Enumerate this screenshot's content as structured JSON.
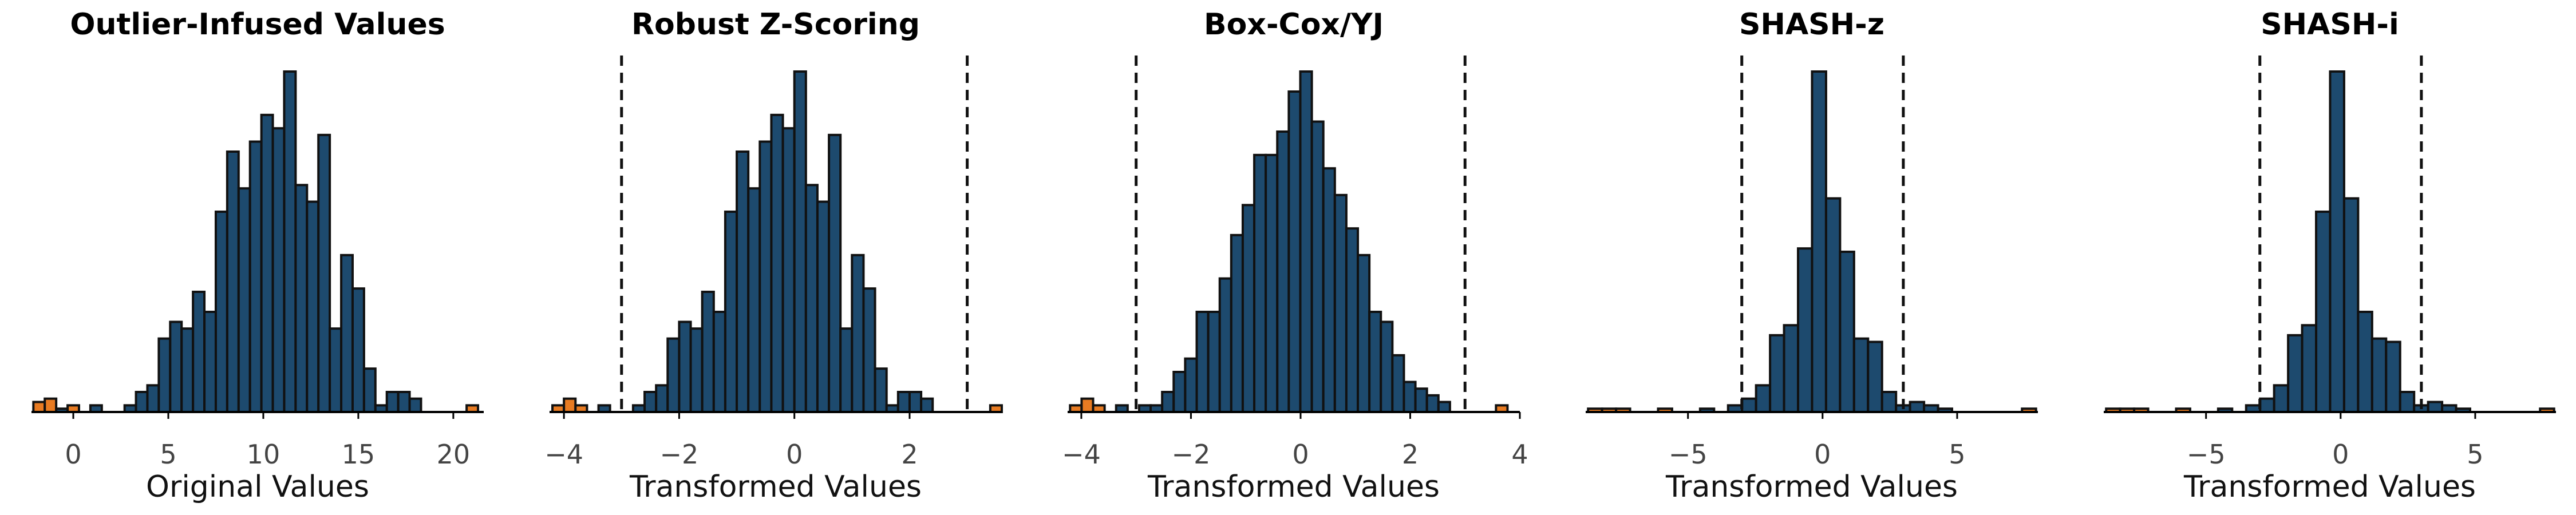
{
  "colors": {
    "inlier": "#1d4a6e",
    "outlier": "#e87b22",
    "edge": "#111111",
    "threshold": "#111111"
  },
  "chart_data": [
    {
      "type": "bar",
      "title": "Outlier-Infused Values",
      "xlabel": "Original Values",
      "xlim": [
        -2.2,
        21.6
      ],
      "xticks": [
        0,
        5,
        10,
        15,
        20
      ],
      "thresholds": [],
      "bin_width": 0.6,
      "bins": [
        {
          "x": -1.8,
          "count": 3,
          "outlier": true
        },
        {
          "x": -1.2,
          "count": 4,
          "outlier": true
        },
        {
          "x": -0.6,
          "count": 1,
          "outlier": false
        },
        {
          "x": -0.0,
          "count": 2,
          "outlier": true
        },
        {
          "x": 0.6,
          "count": 0,
          "outlier": false
        },
        {
          "x": 1.2,
          "count": 2,
          "outlier": false
        },
        {
          "x": 1.8,
          "count": 0,
          "outlier": false
        },
        {
          "x": 2.4,
          "count": 0,
          "outlier": false
        },
        {
          "x": 3.0,
          "count": 2,
          "outlier": false
        },
        {
          "x": 3.6,
          "count": 6,
          "outlier": false
        },
        {
          "x": 4.2,
          "count": 8,
          "outlier": false
        },
        {
          "x": 4.8,
          "count": 22,
          "outlier": false
        },
        {
          "x": 5.4,
          "count": 27,
          "outlier": false
        },
        {
          "x": 6.0,
          "count": 25,
          "outlier": false
        },
        {
          "x": 6.6,
          "count": 36,
          "outlier": false
        },
        {
          "x": 7.2,
          "count": 30,
          "outlier": false
        },
        {
          "x": 7.8,
          "count": 60,
          "outlier": false
        },
        {
          "x": 8.4,
          "count": 78,
          "outlier": false
        },
        {
          "x": 9.0,
          "count": 67,
          "outlier": false
        },
        {
          "x": 9.6,
          "count": 81,
          "outlier": false
        },
        {
          "x": 10.2,
          "count": 89,
          "outlier": false
        },
        {
          "x": 10.8,
          "count": 85,
          "outlier": false
        },
        {
          "x": 11.4,
          "count": 102,
          "outlier": false
        },
        {
          "x": 12.0,
          "count": 68,
          "outlier": false
        },
        {
          "x": 12.6,
          "count": 63,
          "outlier": false
        },
        {
          "x": 13.2,
          "count": 83,
          "outlier": false
        },
        {
          "x": 13.8,
          "count": 25,
          "outlier": false
        },
        {
          "x": 14.4,
          "count": 47,
          "outlier": false
        },
        {
          "x": 15.0,
          "count": 37,
          "outlier": false
        },
        {
          "x": 15.6,
          "count": 13,
          "outlier": false
        },
        {
          "x": 16.2,
          "count": 2,
          "outlier": false
        },
        {
          "x": 16.8,
          "count": 6,
          "outlier": false
        },
        {
          "x": 17.4,
          "count": 6,
          "outlier": false
        },
        {
          "x": 18.0,
          "count": 4,
          "outlier": false
        },
        {
          "x": 18.6,
          "count": 0,
          "outlier": false
        },
        {
          "x": 19.2,
          "count": 0,
          "outlier": false
        },
        {
          "x": 19.8,
          "count": 0,
          "outlier": false
        },
        {
          "x": 20.4,
          "count": 0,
          "outlier": false
        },
        {
          "x": 21.0,
          "count": 2,
          "outlier": true
        }
      ]
    },
    {
      "type": "bar",
      "title": "Robust Z-Scoring",
      "xlabel": "Transformed Values",
      "xlim": [
        -4.25,
        3.6
      ],
      "xticks": [
        -4,
        -2,
        0,
        2
      ],
      "thresholds": [
        -3,
        3
      ],
      "bin_width": 0.2,
      "bins": [
        {
          "x": -4.1,
          "count": 2,
          "outlier": true
        },
        {
          "x": -3.9,
          "count": 4,
          "outlier": true
        },
        {
          "x": -3.7,
          "count": 2,
          "outlier": true
        },
        {
          "x": -3.5,
          "count": 0,
          "outlier": false
        },
        {
          "x": -3.3,
          "count": 2,
          "outlier": false
        },
        {
          "x": -3.1,
          "count": 0,
          "outlier": false
        },
        {
          "x": -2.9,
          "count": 0,
          "outlier": false
        },
        {
          "x": -2.7,
          "count": 2,
          "outlier": false
        },
        {
          "x": -2.5,
          "count": 6,
          "outlier": false
        },
        {
          "x": -2.3,
          "count": 8,
          "outlier": false
        },
        {
          "x": -2.1,
          "count": 22,
          "outlier": false
        },
        {
          "x": -1.9,
          "count": 27,
          "outlier": false
        },
        {
          "x": -1.7,
          "count": 25,
          "outlier": false
        },
        {
          "x": -1.5,
          "count": 36,
          "outlier": false
        },
        {
          "x": -1.3,
          "count": 30,
          "outlier": false
        },
        {
          "x": -1.1,
          "count": 60,
          "outlier": false
        },
        {
          "x": -0.9,
          "count": 78,
          "outlier": false
        },
        {
          "x": -0.7,
          "count": 67,
          "outlier": false
        },
        {
          "x": -0.5,
          "count": 81,
          "outlier": false
        },
        {
          "x": -0.3,
          "count": 89,
          "outlier": false
        },
        {
          "x": -0.1,
          "count": 85,
          "outlier": false
        },
        {
          "x": 0.1,
          "count": 102,
          "outlier": false
        },
        {
          "x": 0.3,
          "count": 68,
          "outlier": false
        },
        {
          "x": 0.5,
          "count": 63,
          "outlier": false
        },
        {
          "x": 0.7,
          "count": 83,
          "outlier": false
        },
        {
          "x": 0.9,
          "count": 25,
          "outlier": false
        },
        {
          "x": 1.1,
          "count": 47,
          "outlier": false
        },
        {
          "x": 1.3,
          "count": 37,
          "outlier": false
        },
        {
          "x": 1.5,
          "count": 13,
          "outlier": false
        },
        {
          "x": 1.7,
          "count": 2,
          "outlier": false
        },
        {
          "x": 1.9,
          "count": 6,
          "outlier": false
        },
        {
          "x": 2.1,
          "count": 6,
          "outlier": false
        },
        {
          "x": 2.3,
          "count": 4,
          "outlier": false
        },
        {
          "x": 2.5,
          "count": 0,
          "outlier": false
        },
        {
          "x": 2.7,
          "count": 0,
          "outlier": false
        },
        {
          "x": 2.9,
          "count": 0,
          "outlier": false
        },
        {
          "x": 3.1,
          "count": 0,
          "outlier": false
        },
        {
          "x": 3.3,
          "count": 0,
          "outlier": false
        },
        {
          "x": 3.5,
          "count": 2,
          "outlier": true
        }
      ]
    },
    {
      "type": "bar",
      "title": "Box-Cox/YJ",
      "xlabel": "Transformed Values",
      "xlim": [
        -4.25,
        4.0
      ],
      "xticks": [
        -4,
        -2,
        0,
        2,
        4
      ],
      "thresholds": [
        -3,
        3
      ],
      "bin_width": 0.21,
      "bins": [
        {
          "x": -4.1,
          "count": 2,
          "outlier": true
        },
        {
          "x": -3.89,
          "count": 4,
          "outlier": true
        },
        {
          "x": -3.68,
          "count": 2,
          "outlier": true
        },
        {
          "x": -3.47,
          "count": 0,
          "outlier": false
        },
        {
          "x": -3.26,
          "count": 2,
          "outlier": false
        },
        {
          "x": -3.05,
          "count": 0,
          "outlier": false
        },
        {
          "x": -2.84,
          "count": 2,
          "outlier": false
        },
        {
          "x": -2.63,
          "count": 2,
          "outlier": false
        },
        {
          "x": -2.42,
          "count": 6,
          "outlier": false
        },
        {
          "x": -2.21,
          "count": 12,
          "outlier": false
        },
        {
          "x": -2.0,
          "count": 16,
          "outlier": false
        },
        {
          "x": -1.79,
          "count": 30,
          "outlier": false
        },
        {
          "x": -1.58,
          "count": 30,
          "outlier": false
        },
        {
          "x": -1.37,
          "count": 40,
          "outlier": false
        },
        {
          "x": -1.16,
          "count": 53,
          "outlier": false
        },
        {
          "x": -0.95,
          "count": 62,
          "outlier": false
        },
        {
          "x": -0.74,
          "count": 77,
          "outlier": false
        },
        {
          "x": -0.53,
          "count": 77,
          "outlier": false
        },
        {
          "x": -0.32,
          "count": 84,
          "outlier": false
        },
        {
          "x": -0.11,
          "count": 96,
          "outlier": false
        },
        {
          "x": 0.1,
          "count": 102,
          "outlier": false
        },
        {
          "x": 0.31,
          "count": 87,
          "outlier": false
        },
        {
          "x": 0.52,
          "count": 73,
          "outlier": false
        },
        {
          "x": 0.73,
          "count": 65,
          "outlier": false
        },
        {
          "x": 0.94,
          "count": 55,
          "outlier": false
        },
        {
          "x": 1.15,
          "count": 47,
          "outlier": false
        },
        {
          "x": 1.36,
          "count": 30,
          "outlier": false
        },
        {
          "x": 1.57,
          "count": 27,
          "outlier": false
        },
        {
          "x": 1.78,
          "count": 17,
          "outlier": false
        },
        {
          "x": 1.99,
          "count": 9,
          "outlier": false
        },
        {
          "x": 2.2,
          "count": 7,
          "outlier": false
        },
        {
          "x": 2.41,
          "count": 5,
          "outlier": false
        },
        {
          "x": 2.62,
          "count": 3,
          "outlier": false
        },
        {
          "x": 2.83,
          "count": 0,
          "outlier": false
        },
        {
          "x": 3.04,
          "count": 0,
          "outlier": false
        },
        {
          "x": 3.25,
          "count": 0,
          "outlier": false
        },
        {
          "x": 3.46,
          "count": 0,
          "outlier": false
        },
        {
          "x": 3.67,
          "count": 2,
          "outlier": true
        }
      ]
    },
    {
      "type": "bar",
      "title": "SHASH-z",
      "xlabel": "Transformed Values",
      "xlim": [
        -8.8,
        8.0
      ],
      "xticks": [
        -5,
        0,
        5
      ],
      "thresholds": [
        -3,
        3
      ],
      "bin_width": 0.52,
      "bins": [
        {
          "x": -8.45,
          "count": 1,
          "outlier": true
        },
        {
          "x": -7.93,
          "count": 1,
          "outlier": true
        },
        {
          "x": -7.41,
          "count": 1,
          "outlier": true
        },
        {
          "x": -6.89,
          "count": 0,
          "outlier": false
        },
        {
          "x": -6.37,
          "count": 0,
          "outlier": false
        },
        {
          "x": -5.85,
          "count": 1,
          "outlier": true
        },
        {
          "x": -5.33,
          "count": 0,
          "outlier": false
        },
        {
          "x": -4.81,
          "count": 0,
          "outlier": false
        },
        {
          "x": -4.29,
          "count": 1,
          "outlier": false
        },
        {
          "x": -3.77,
          "count": 0,
          "outlier": false
        },
        {
          "x": -3.25,
          "count": 2,
          "outlier": false
        },
        {
          "x": -2.73,
          "count": 4,
          "outlier": false
        },
        {
          "x": -2.21,
          "count": 8,
          "outlier": false
        },
        {
          "x": -1.69,
          "count": 23,
          "outlier": false
        },
        {
          "x": -1.17,
          "count": 26,
          "outlier": false
        },
        {
          "x": -0.65,
          "count": 49,
          "outlier": false
        },
        {
          "x": -0.13,
          "count": 102,
          "outlier": false
        },
        {
          "x": 0.39,
          "count": 64,
          "outlier": false
        },
        {
          "x": 0.91,
          "count": 48,
          "outlier": false
        },
        {
          "x": 1.43,
          "count": 22,
          "outlier": false
        },
        {
          "x": 1.95,
          "count": 21,
          "outlier": false
        },
        {
          "x": 2.47,
          "count": 6,
          "outlier": false
        },
        {
          "x": 2.99,
          "count": 2,
          "outlier": false
        },
        {
          "x": 3.51,
          "count": 3,
          "outlier": false
        },
        {
          "x": 4.03,
          "count": 2,
          "outlier": false
        },
        {
          "x": 4.55,
          "count": 1,
          "outlier": false
        },
        {
          "x": 5.07,
          "count": 0,
          "outlier": false
        },
        {
          "x": 5.59,
          "count": 0,
          "outlier": false
        },
        {
          "x": 6.11,
          "count": 0,
          "outlier": false
        },
        {
          "x": 6.63,
          "count": 0,
          "outlier": false
        },
        {
          "x": 7.15,
          "count": 0,
          "outlier": false
        },
        {
          "x": 7.67,
          "count": 1,
          "outlier": true
        }
      ]
    },
    {
      "type": "bar",
      "title": "SHASH-i",
      "xlabel": "Transformed Values",
      "xlim": [
        -8.8,
        8.0
      ],
      "xticks": [
        -5,
        0,
        5
      ],
      "thresholds": [
        -3,
        3
      ],
      "bin_width": 0.52,
      "bins": [
        {
          "x": -8.45,
          "count": 1,
          "outlier": true
        },
        {
          "x": -7.93,
          "count": 1,
          "outlier": true
        },
        {
          "x": -7.41,
          "count": 1,
          "outlier": true
        },
        {
          "x": -6.89,
          "count": 0,
          "outlier": false
        },
        {
          "x": -6.37,
          "count": 0,
          "outlier": false
        },
        {
          "x": -5.85,
          "count": 1,
          "outlier": true
        },
        {
          "x": -5.33,
          "count": 0,
          "outlier": false
        },
        {
          "x": -4.81,
          "count": 0,
          "outlier": false
        },
        {
          "x": -4.29,
          "count": 1,
          "outlier": false
        },
        {
          "x": -3.77,
          "count": 0,
          "outlier": false
        },
        {
          "x": -3.25,
          "count": 2,
          "outlier": false
        },
        {
          "x": -2.73,
          "count": 4,
          "outlier": false
        },
        {
          "x": -2.21,
          "count": 8,
          "outlier": false
        },
        {
          "x": -1.69,
          "count": 23,
          "outlier": false
        },
        {
          "x": -1.17,
          "count": 26,
          "outlier": false
        },
        {
          "x": -0.65,
          "count": 60,
          "outlier": false
        },
        {
          "x": -0.13,
          "count": 102,
          "outlier": false
        },
        {
          "x": 0.39,
          "count": 64,
          "outlier": false
        },
        {
          "x": 0.91,
          "count": 30,
          "outlier": false
        },
        {
          "x": 1.43,
          "count": 22,
          "outlier": false
        },
        {
          "x": 1.95,
          "count": 21,
          "outlier": false
        },
        {
          "x": 2.47,
          "count": 6,
          "outlier": false
        },
        {
          "x": 2.99,
          "count": 2,
          "outlier": false
        },
        {
          "x": 3.51,
          "count": 3,
          "outlier": false
        },
        {
          "x": 4.03,
          "count": 2,
          "outlier": false
        },
        {
          "x": 4.55,
          "count": 1,
          "outlier": false
        },
        {
          "x": 5.07,
          "count": 0,
          "outlier": false
        },
        {
          "x": 5.59,
          "count": 0,
          "outlier": false
        },
        {
          "x": 6.11,
          "count": 0,
          "outlier": false
        },
        {
          "x": 6.63,
          "count": 0,
          "outlier": false
        },
        {
          "x": 7.15,
          "count": 0,
          "outlier": false
        },
        {
          "x": 7.67,
          "count": 1,
          "outlier": true
        }
      ]
    }
  ]
}
